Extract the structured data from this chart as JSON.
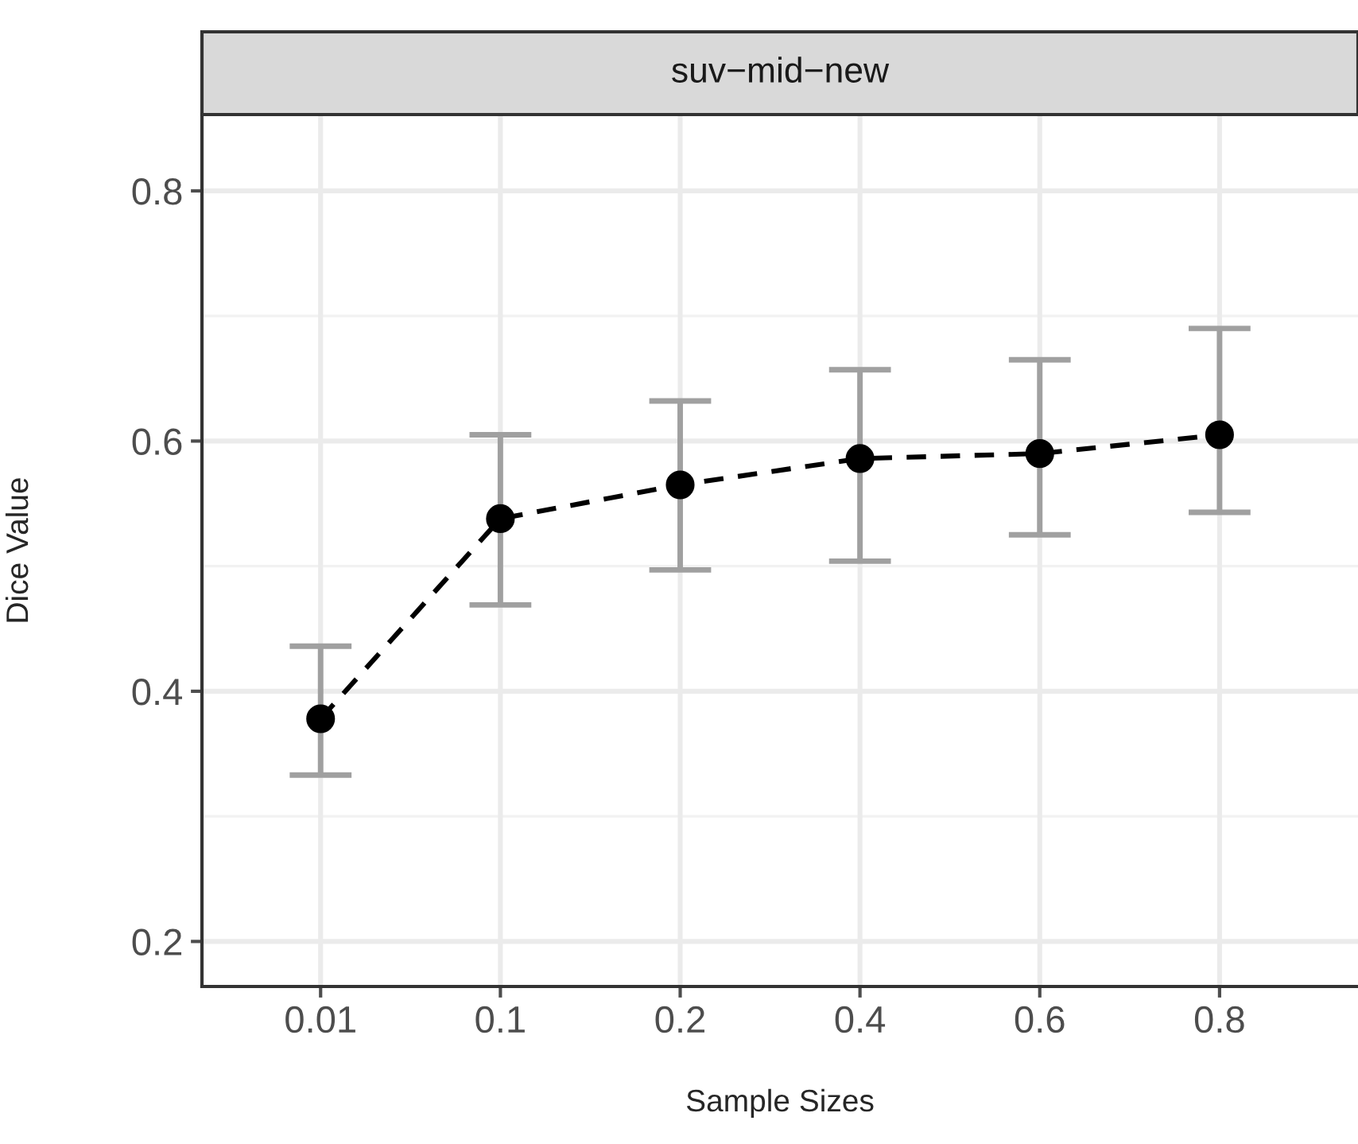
{
  "chart_data": {
    "type": "line",
    "title": "suv−mid−new",
    "xlabel": "Sample Sizes",
    "ylabel": "Dice Value",
    "categories": [
      "0.01",
      "0.1",
      "0.2",
      "0.4",
      "0.6",
      "0.8"
    ],
    "series": [
      {
        "color": "#000000",
        "values": [
          0.378,
          0.538,
          0.565,
          0.586,
          0.59,
          0.605
        ],
        "errors": [
          [
            0.333,
            0.436
          ],
          [
            0.469,
            0.605
          ],
          [
            0.497,
            0.632
          ],
          [
            0.504,
            0.657
          ],
          [
            0.525,
            0.665
          ],
          [
            0.543,
            0.69
          ]
        ]
      }
    ],
    "ylim": [
      0.164,
      0.861
    ],
    "yticks": [
      0.2,
      0.4,
      0.6,
      0.8
    ],
    "grid": true,
    "legend": false,
    "marker": "circle",
    "line_style": "dashed"
  }
}
